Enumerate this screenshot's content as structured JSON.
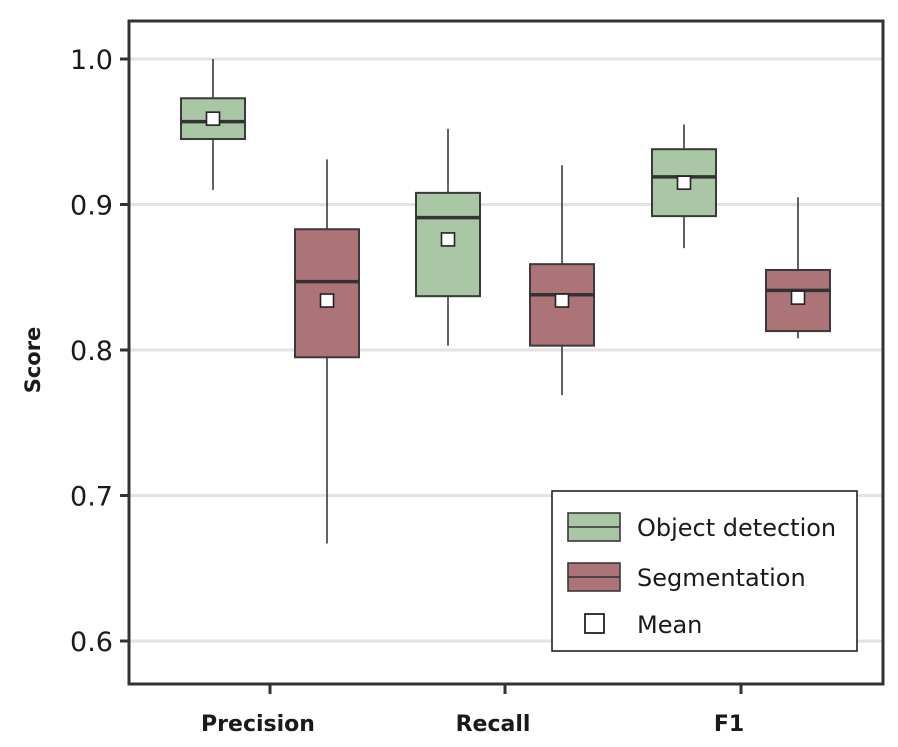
{
  "chart_data": {
    "type": "box",
    "title": "",
    "xlabel": "",
    "ylabel": "Score",
    "ylim": [
      0.57,
      1.03
    ],
    "yticks": [
      "0.6",
      "0.7",
      "0.8",
      "0.9",
      "1.0"
    ],
    "ytick_values": [
      0.6,
      0.7,
      0.8,
      0.9,
      1.0
    ],
    "grid": "horizontal",
    "categories": [
      "Precision",
      "Recall",
      "F1"
    ],
    "series": [
      {
        "name": "Object detection",
        "color": "#a9c6a5",
        "boxes": [
          {
            "whisker_low": 0.91,
            "q1": 0.945,
            "median": 0.957,
            "q3": 0.973,
            "whisker_high": 1.0,
            "mean": 0.959
          },
          {
            "whisker_low": 0.803,
            "q1": 0.837,
            "median": 0.891,
            "q3": 0.908,
            "whisker_high": 0.952,
            "mean": 0.876
          },
          {
            "whisker_low": 0.87,
            "q1": 0.892,
            "median": 0.919,
            "q3": 0.938,
            "whisker_high": 0.955,
            "mean": 0.915
          }
        ]
      },
      {
        "name": "Segmentation",
        "color": "#ad7478",
        "boxes": [
          {
            "whisker_low": 0.667,
            "q1": 0.795,
            "median": 0.847,
            "q3": 0.883,
            "whisker_high": 0.931,
            "mean": 0.834
          },
          {
            "whisker_low": 0.769,
            "q1": 0.803,
            "median": 0.838,
            "q3": 0.859,
            "whisker_high": 0.927,
            "mean": 0.834
          },
          {
            "whisker_low": 0.808,
            "q1": 0.813,
            "median": 0.841,
            "q3": 0.855,
            "whisker_high": 0.905,
            "mean": 0.836
          }
        ]
      }
    ],
    "legend": {
      "position": "bottom-right",
      "entries": [
        "Object detection",
        "Segmentation",
        "Mean"
      ]
    }
  }
}
